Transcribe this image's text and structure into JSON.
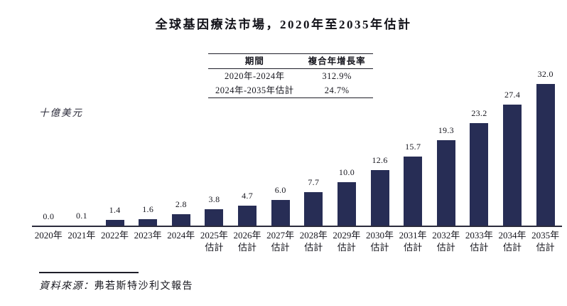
{
  "page": {
    "title": "全球基因療法市場，2020年至2035年估計"
  },
  "cagr_table": {
    "headers": [
      "期間",
      "複合年增長率"
    ],
    "rows": [
      {
        "period": "2020年-2024年",
        "cagr": "312.9%"
      },
      {
        "period": "2024年-2035年估計",
        "cagr": "24.7%"
      }
    ]
  },
  "chart_data": {
    "type": "bar",
    "title": "全球基因療法市場，2020年至2035年估計",
    "xlabel": "",
    "ylabel": "十億美元",
    "ylim": [
      0,
      32
    ],
    "grid": false,
    "legend": false,
    "bar_color": "#272d55",
    "categories": [
      {
        "year": "2020年",
        "note": ""
      },
      {
        "year": "2021年",
        "note": ""
      },
      {
        "year": "2022年",
        "note": ""
      },
      {
        "year": "2023年",
        "note": ""
      },
      {
        "year": "2024年",
        "note": ""
      },
      {
        "year": "2025年",
        "note": "估計"
      },
      {
        "year": "2026年",
        "note": "估計"
      },
      {
        "year": "2027年",
        "note": "估計"
      },
      {
        "year": "2028年",
        "note": "估計"
      },
      {
        "year": "2029年",
        "note": "估計"
      },
      {
        "year": "2030年",
        "note": "估計"
      },
      {
        "year": "2031年",
        "note": "估計"
      },
      {
        "year": "2032年",
        "note": "估計"
      },
      {
        "year": "2033年",
        "note": "估計"
      },
      {
        "year": "2034年",
        "note": "估計"
      },
      {
        "year": "2035年",
        "note": "估計"
      }
    ],
    "values": [
      0.0,
      0.1,
      1.4,
      1.6,
      2.8,
      3.8,
      4.7,
      6.0,
      7.7,
      10.0,
      12.6,
      15.7,
      19.3,
      23.2,
      27.4,
      32.0
    ],
    "labels": [
      "0.0",
      "0.1",
      "1.4",
      "1.6",
      "2.8",
      "3.8",
      "4.7",
      "6.0",
      "7.7",
      "10.0",
      "12.6",
      "15.7",
      "19.3",
      "23.2",
      "27.4",
      "32.0"
    ]
  },
  "source": {
    "prefix": "資料來源：",
    "text": "弗若斯特沙利文報告"
  }
}
